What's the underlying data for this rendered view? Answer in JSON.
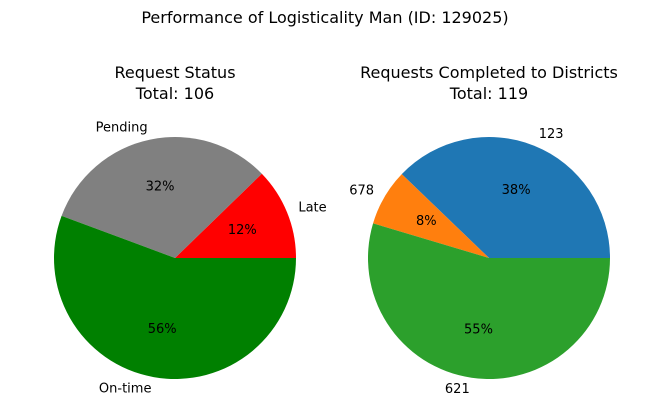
{
  "figure": {
    "title": "Performance of Logisticality Man (ID: 129025)"
  },
  "chart_data": [
    {
      "type": "pie",
      "title": "Request Status",
      "subtitle": "Total: 106",
      "categories": [
        "Late",
        "Pending",
        "On-time"
      ],
      "values": [
        13,
        34,
        59
      ],
      "percent_labels": [
        "12%",
        "32%",
        "56%"
      ],
      "colors": [
        "#ff0000",
        "#808080",
        "#008000"
      ],
      "start_angle_deg": 0,
      "direction": "counterclockwise"
    },
    {
      "type": "pie",
      "title": "Requests Completed to Districts",
      "subtitle": "Total: 119",
      "categories": [
        "123",
        "678",
        "621"
      ],
      "values": [
        45,
        9,
        65
      ],
      "percent_labels": [
        "38%",
        "8%",
        "55%"
      ],
      "colors": [
        "#1f77b4",
        "#ff7f0e",
        "#2ca02c"
      ],
      "start_angle_deg": 0,
      "direction": "counterclockwise"
    }
  ]
}
